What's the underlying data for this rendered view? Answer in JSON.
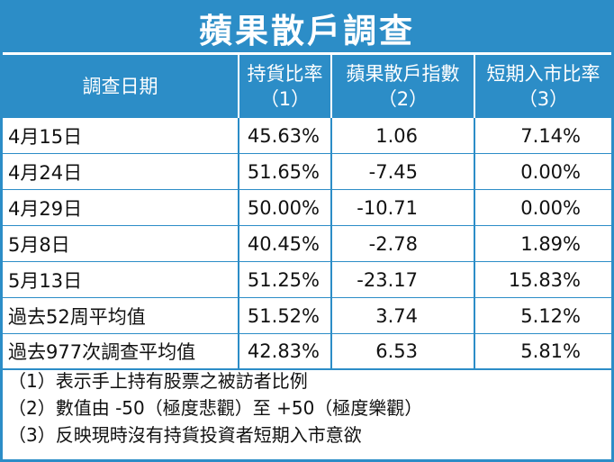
{
  "title": "蘋果散戶調查",
  "header": {
    "col_date": "調查日期",
    "col_holding": [
      "持貨比率",
      "（1）"
    ],
    "col_index": [
      "蘋果散戶指數",
      "（2）"
    ],
    "col_short": [
      "短期入市比率",
      "（3）"
    ]
  },
  "rows": [
    {
      "date": "4月15日",
      "holding": "45.63%",
      "index": "1.06",
      "short": "7.14%"
    },
    {
      "date": "4月24日",
      "holding": "51.65%",
      "index": "-7.45",
      "short": "0.00%"
    },
    {
      "date": "4月29日",
      "holding": "50.00%",
      "index": "-10.71",
      "short": "0.00%"
    },
    {
      "date": "5月8日",
      "holding": "40.45%",
      "index": "-2.78",
      "short": "1.89%"
    },
    {
      "date": "5月13日",
      "holding": "51.25%",
      "index": "-23.17",
      "short": "15.83%"
    },
    {
      "date": "過去52周平均值",
      "holding": "51.52%",
      "index": "3.74",
      "short": "5.12%"
    },
    {
      "date": "過去977次調查平均值",
      "holding": "42.83%",
      "index": "6.53",
      "short": "5.81%"
    }
  ],
  "notes": [
    "（1）表示手上持有股票之被訪者比例",
    "（2）數值由 -50（極度悲觀）至 +50（極度樂觀）",
    "（3）反映現時沒有持貨投資者短期入市意欲"
  ],
  "colors": {
    "accent": "#2c8dc7",
    "text": "#111111",
    "background": "#ffffff"
  }
}
